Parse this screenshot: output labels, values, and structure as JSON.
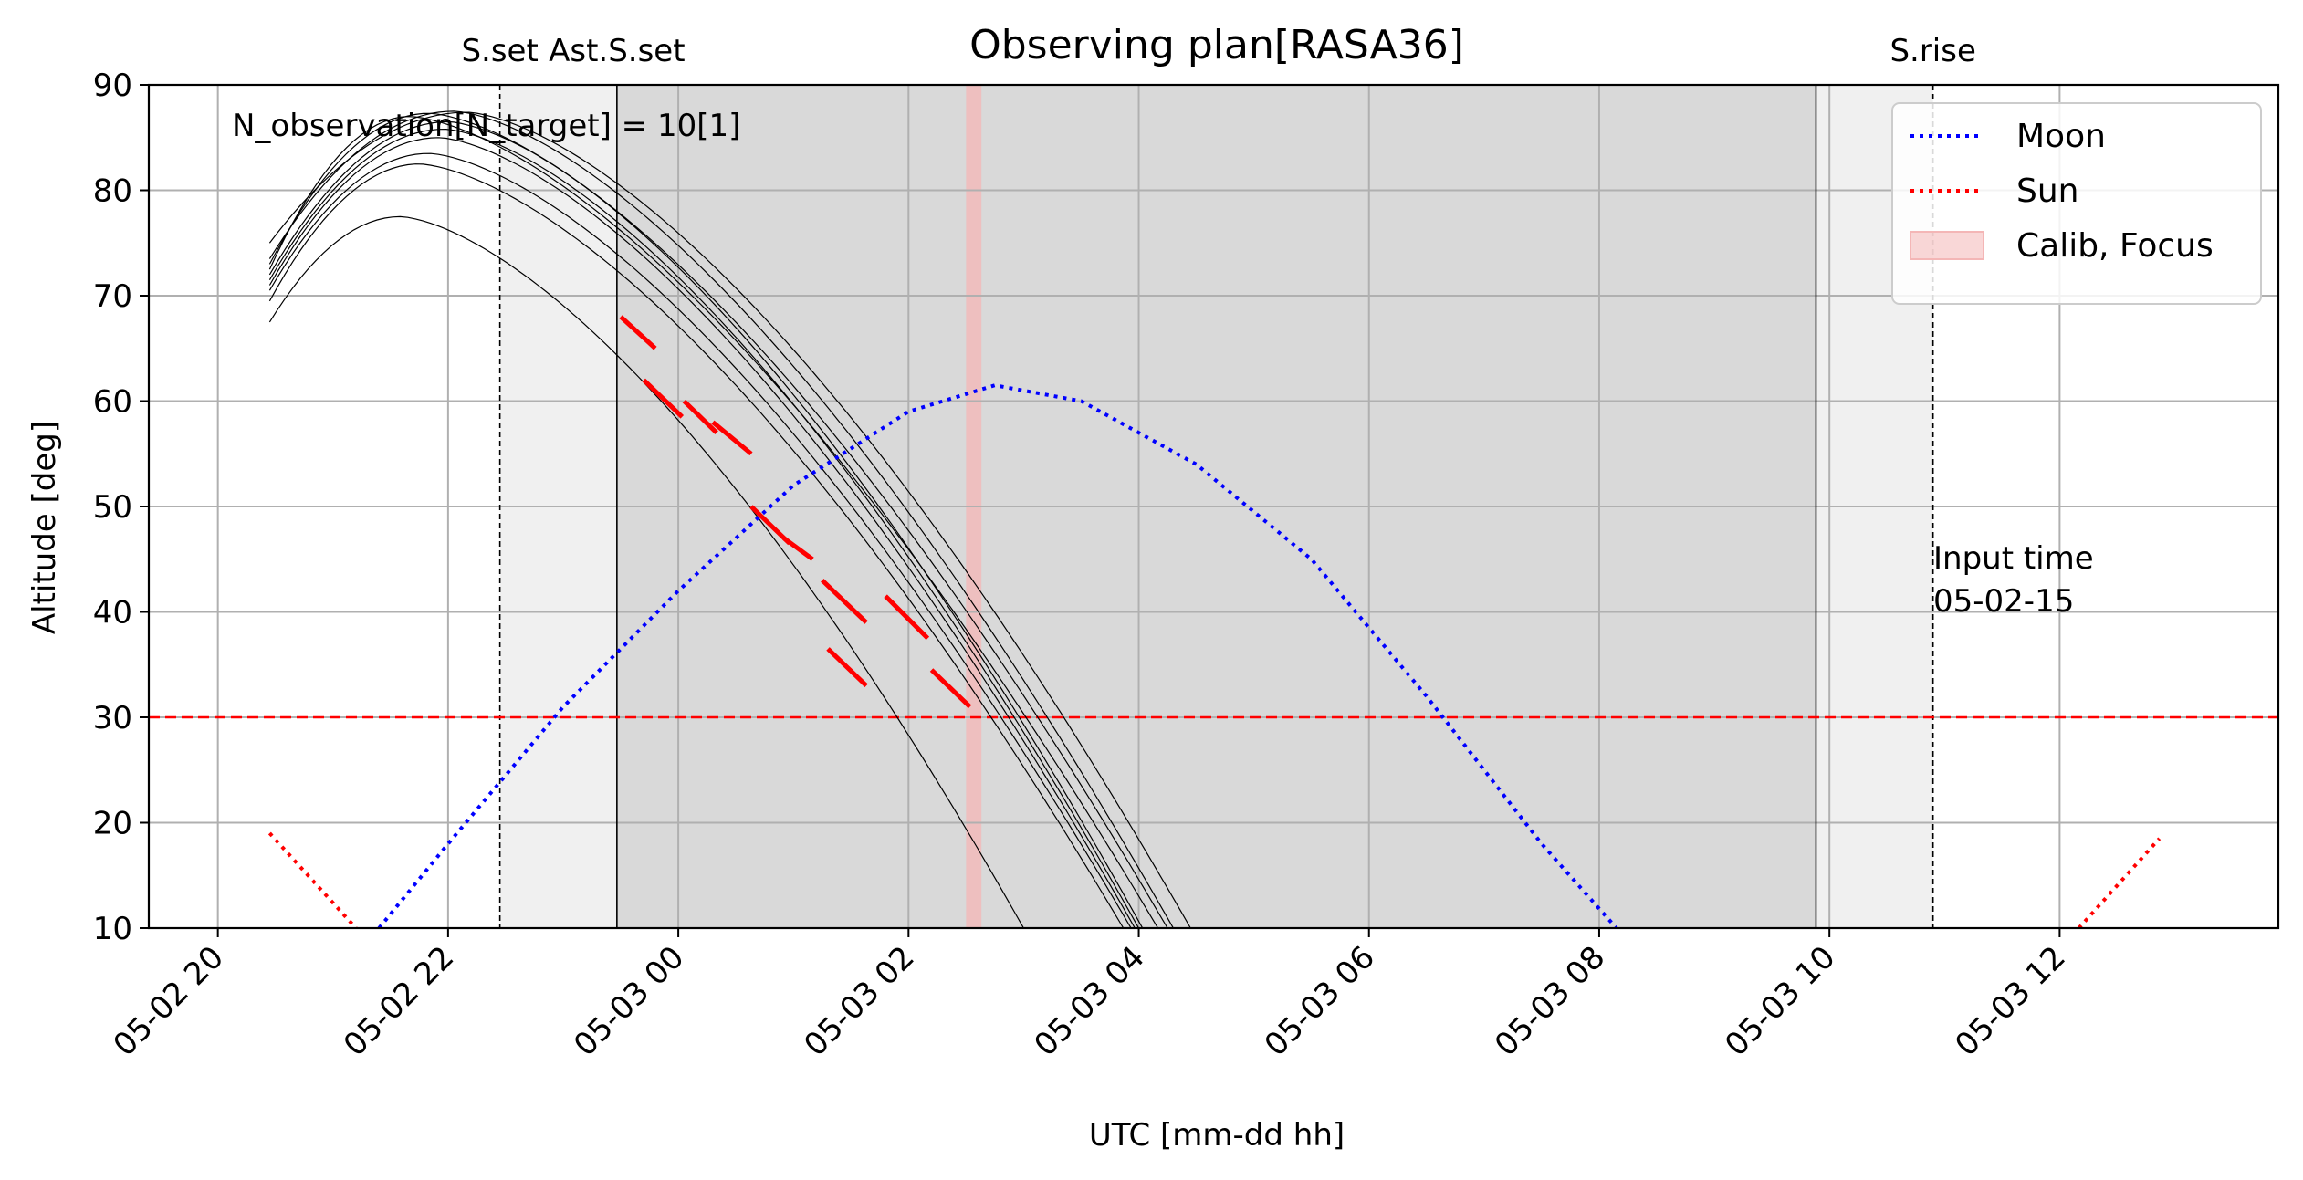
{
  "chart_data": {
    "type": "line",
    "title": "Observing plan[RASA36]",
    "xlabel": "UTC [mm-dd hh]",
    "ylabel": "Altitude [deg]",
    "xlim": [
      "05-02 19:24",
      "05-03 13:54"
    ],
    "ylim": [
      10,
      90
    ],
    "grid": true,
    "legend_position": "top-right",
    "x_ticks": [
      "05-02 20",
      "05-02 22",
      "05-03 00",
      "05-03 02",
      "05-03 04",
      "05-03 06",
      "05-03 08",
      "05-03 10",
      "05-03 12"
    ],
    "y_ticks": [
      "10",
      "20",
      "30",
      "40",
      "50",
      "60",
      "70",
      "80",
      "90"
    ],
    "annotation": "N_observation[N_target] = 10[1]",
    "input_time_label": "Input time\n 05-02-15",
    "altitude_limit": 30,
    "colors": {
      "moon": "#0000ff",
      "sun": "#ff0000",
      "target": "#000000",
      "observation": "#ff0000",
      "calib": "#f4b6b6",
      "twilight": "#f0f0f0",
      "night": "#d9d9d9",
      "grid": "#b0b0b0"
    },
    "events": [
      {
        "label": "S.set",
        "time": "05-02 22:27",
        "style": "dashed"
      },
      {
        "label": "Ast.S.set",
        "time": "05-02 23:28",
        "style": "solid"
      },
      {
        "label": "",
        "time": "05-03 09:53",
        "style": "solid"
      },
      {
        "label": "S.rise",
        "time": "05-03 10:54",
        "style": "dashed"
      }
    ],
    "shaded_regions": [
      {
        "kind": "twilight",
        "start": "05-02 22:27",
        "end": "05-02 23:28"
      },
      {
        "kind": "night",
        "start": "05-02 23:28",
        "end": "05-03 09:53"
      },
      {
        "kind": "twilight",
        "start": "05-03 09:53",
        "end": "05-03 10:54"
      },
      {
        "kind": "calib",
        "start": "05-03 02:30",
        "end": "05-03 02:38"
      }
    ],
    "legend": [
      {
        "label": "Moon",
        "kind": "dotted-line",
        "color": "#0000ff"
      },
      {
        "label": "Sun",
        "kind": "dotted-line",
        "color": "#ff0000"
      },
      {
        "label": "Calib, Focus",
        "kind": "patch",
        "color": "#f4b6b6"
      }
    ],
    "series": [
      {
        "name": "Moon",
        "x": [
          "05-02 21:24",
          "05-02 22:00",
          "05-02 23:00",
          "05-03 00:00",
          "05-03 01:00",
          "05-03 02:00",
          "05-03 02:45",
          "05-03 03:30",
          "05-03 04:30",
          "05-03 05:30",
          "05-03 06:30",
          "05-03 07:30",
          "05-03 08:09"
        ],
        "y": [
          10,
          18,
          31,
          42,
          52,
          59,
          61.5,
          60,
          54,
          45,
          32,
          18,
          10
        ]
      },
      {
        "name": "Sun",
        "x": [
          "05-02 20:27",
          "05-02 21:12"
        ],
        "y": [
          19,
          10
        ]
      },
      {
        "name": "Sun",
        "x": [
          "05-03 12:10",
          "05-03 12:52"
        ],
        "y": [
          10,
          18.5
        ]
      }
    ],
    "target_tracks": [
      {
        "peak_x": "05-02 21:35",
        "peak_y": 77.5,
        "start_y": 67.5,
        "end_x": "05-03 03:00"
      },
      {
        "peak_x": "05-02 21:45",
        "peak_y": 82.5,
        "start_y": 69.5,
        "end_x": "05-03 03:52"
      },
      {
        "peak_x": "05-02 21:50",
        "peak_y": 83.5,
        "start_y": 70.5,
        "end_x": "05-03 03:56"
      },
      {
        "peak_x": "05-02 21:55",
        "peak_y": 85.0,
        "start_y": 71.0,
        "end_x": "05-03 03:58"
      },
      {
        "peak_x": "05-02 21:58",
        "peak_y": 85.8,
        "start_y": 71.5,
        "end_x": "05-03 04:00"
      },
      {
        "peak_x": "05-02 22:00",
        "peak_y": 86.5,
        "start_y": 72.0,
        "end_x": "05-03 04:02"
      },
      {
        "peak_x": "05-02 21:40",
        "peak_y": 87.0,
        "start_y": 72.5,
        "end_x": "05-03 04:10"
      },
      {
        "peak_x": "05-02 21:50",
        "peak_y": 87.3,
        "start_y": 73.0,
        "end_x": "05-03 04:15"
      },
      {
        "peak_x": "05-02 22:03",
        "peak_y": 87.5,
        "start_y": 73.5,
        "end_x": "05-03 04:18"
      },
      {
        "peak_x": "05-02 22:10",
        "peak_y": 87.4,
        "start_y": 75.0,
        "end_x": "05-03 04:27"
      }
    ],
    "observations": [
      {
        "x": [
          "05-02 23:30",
          "05-02 23:48"
        ],
        "y": [
          68,
          65
        ]
      },
      {
        "x": [
          "05-02 23:42",
          "05-03 00:02"
        ],
        "y": [
          62,
          58.5
        ]
      },
      {
        "x": [
          "05-03 00:03",
          "05-03 00:20"
        ],
        "y": [
          60,
          57
        ]
      },
      {
        "x": [
          "05-03 00:18",
          "05-03 00:38"
        ],
        "y": [
          58,
          55
        ]
      },
      {
        "x": [
          "05-03 00:38",
          "05-03 00:58"
        ],
        "y": [
          50,
          46.5
        ]
      },
      {
        "x": [
          "05-03 00:55",
          "05-03 01:10"
        ],
        "y": [
          47,
          45
        ]
      },
      {
        "x": [
          "05-03 01:15",
          "05-03 01:38"
        ],
        "y": [
          43,
          39
        ]
      },
      {
        "x": [
          "05-03 01:48",
          "05-03 02:10"
        ],
        "y": [
          41.5,
          37.5
        ]
      },
      {
        "x": [
          "05-03 01:18",
          "05-03 01:38"
        ],
        "y": [
          36.5,
          33
        ]
      },
      {
        "x": [
          "05-03 02:12",
          "05-03 02:32"
        ],
        "y": [
          34.5,
          31
        ]
      }
    ]
  }
}
